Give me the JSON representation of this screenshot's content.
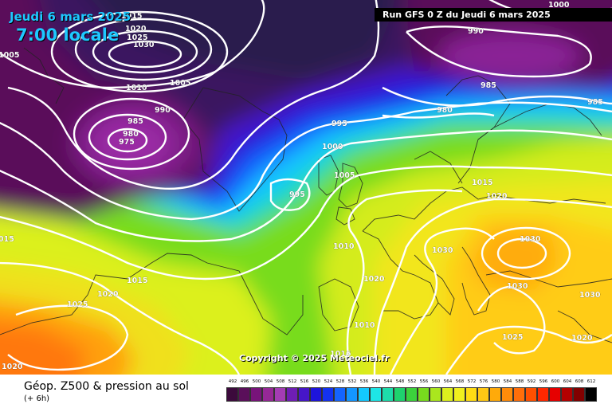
{
  "header": {
    "date_label": "Jeudi 6 mars 2025",
    "time_label": "7:00 locale",
    "run_label": "Run GFS 0 Z du Jeudi 6 mars 2025"
  },
  "map": {
    "copyright": "Copyright © 2025 Meteociel.fr",
    "isobar_labels": [
      {
        "text": "1015"
      },
      {
        "text": "1020"
      },
      {
        "text": "1025"
      },
      {
        "text": "1030"
      },
      {
        "text": "1010"
      },
      {
        "text": "1005"
      },
      {
        "text": "990"
      },
      {
        "text": "985"
      },
      {
        "text": "980"
      },
      {
        "text": "975"
      },
      {
        "text": "1005"
      },
      {
        "text": "995"
      },
      {
        "text": "1000"
      },
      {
        "text": "1005"
      },
      {
        "text": "995"
      },
      {
        "text": "1000"
      },
      {
        "text": "990"
      },
      {
        "text": "985"
      },
      {
        "text": "985"
      },
      {
        "text": "980"
      },
      {
        "text": "1015"
      },
      {
        "text": "1020"
      },
      {
        "text": "1030"
      },
      {
        "text": "1030"
      },
      {
        "text": "1030"
      },
      {
        "text": "1030"
      },
      {
        "text": "1025"
      },
      {
        "text": "1020"
      },
      {
        "text": "1010"
      },
      {
        "text": "1020"
      },
      {
        "text": "1010"
      },
      {
        "text": "1015"
      },
      {
        "text": "1020"
      },
      {
        "text": "1025"
      },
      {
        "text": "1020"
      },
      {
        "text": "015"
      },
      {
        "text": "1016"
      }
    ]
  },
  "footer": {
    "title": "Géop. Z500 & pression au sol",
    "subtitle": "(+ 6h)"
  },
  "legend": {
    "labels": [
      "492",
      "496",
      "500",
      "504",
      "508",
      "512",
      "516",
      "520",
      "524",
      "528",
      "532",
      "536",
      "540",
      "544",
      "548",
      "552",
      "556",
      "560",
      "564",
      "568",
      "572",
      "576",
      "580",
      "584",
      "588",
      "592",
      "596",
      "600",
      "604",
      "608",
      "612"
    ],
    "colors": [
      "#3c0a3c",
      "#5a0f5a",
      "#78147a",
      "#962896",
      "#a43cb4",
      "#6e1eb4",
      "#4616c8",
      "#1e14dc",
      "#1432f0",
      "#1464ff",
      "#1496ff",
      "#14c8ff",
      "#1ee6e6",
      "#1edcaa",
      "#1ed26e",
      "#3cd23c",
      "#78dc1e",
      "#aae61e",
      "#dcf01e",
      "#f0f01e",
      "#ffdc14",
      "#ffc814",
      "#ffaa0a",
      "#ff8c0a",
      "#ff6e0a",
      "#ff5000",
      "#ff2800",
      "#e60000",
      "#b40000",
      "#820000",
      "#000000"
    ]
  }
}
